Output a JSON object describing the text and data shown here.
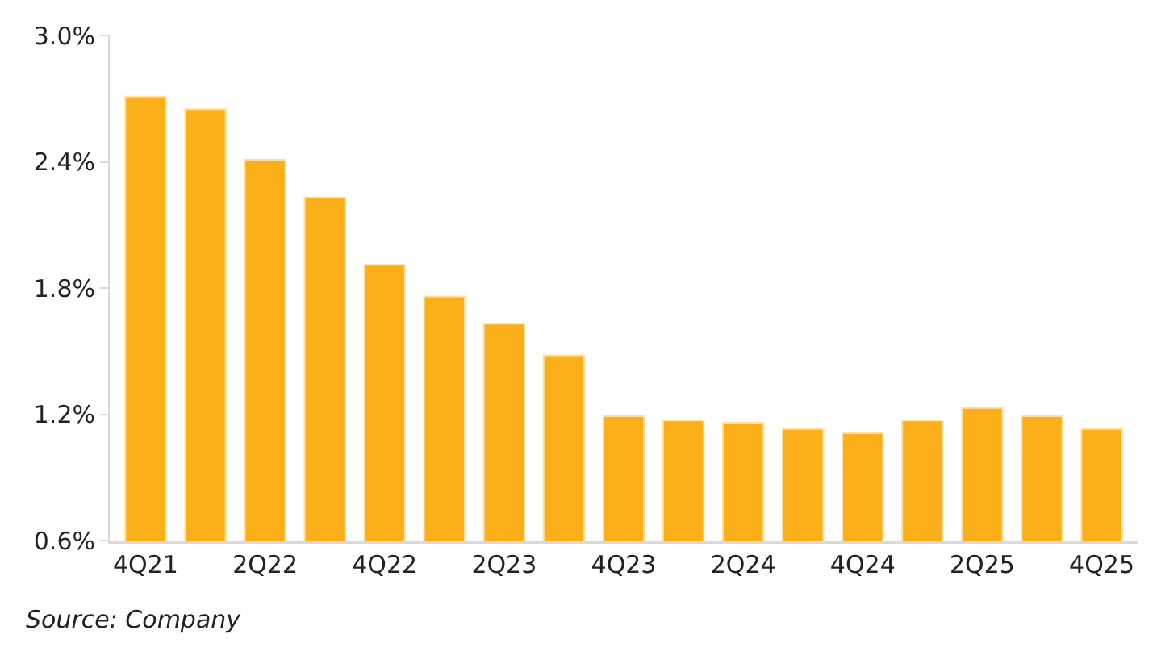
{
  "chart_data": {
    "type": "bar",
    "categories": [
      "4Q21",
      null,
      "2Q22",
      null,
      "4Q22",
      null,
      "2Q23",
      null,
      "4Q23",
      null,
      "2Q24",
      null,
      "4Q24",
      null,
      "2Q25",
      null,
      "4Q25"
    ],
    "values": [
      2.71,
      2.65,
      2.41,
      2.23,
      1.91,
      1.76,
      1.63,
      1.48,
      1.19,
      1.17,
      1.16,
      1.13,
      1.11,
      1.17,
      1.23,
      1.19,
      1.13
    ],
    "color": "#fbb01a",
    "ylim": [
      0.6,
      3.0
    ],
    "yticks": [
      {
        "value": 0.6,
        "label": "0.6%"
      },
      {
        "value": 1.2,
        "label": "1.2%"
      },
      {
        "value": 1.8,
        "label": "1.8%"
      },
      {
        "value": 2.4,
        "label": "2.4%"
      },
      {
        "value": 3.0,
        "label": "3.0%"
      }
    ],
    "legend": false,
    "annotations": [
      "Source: Company"
    ]
  }
}
